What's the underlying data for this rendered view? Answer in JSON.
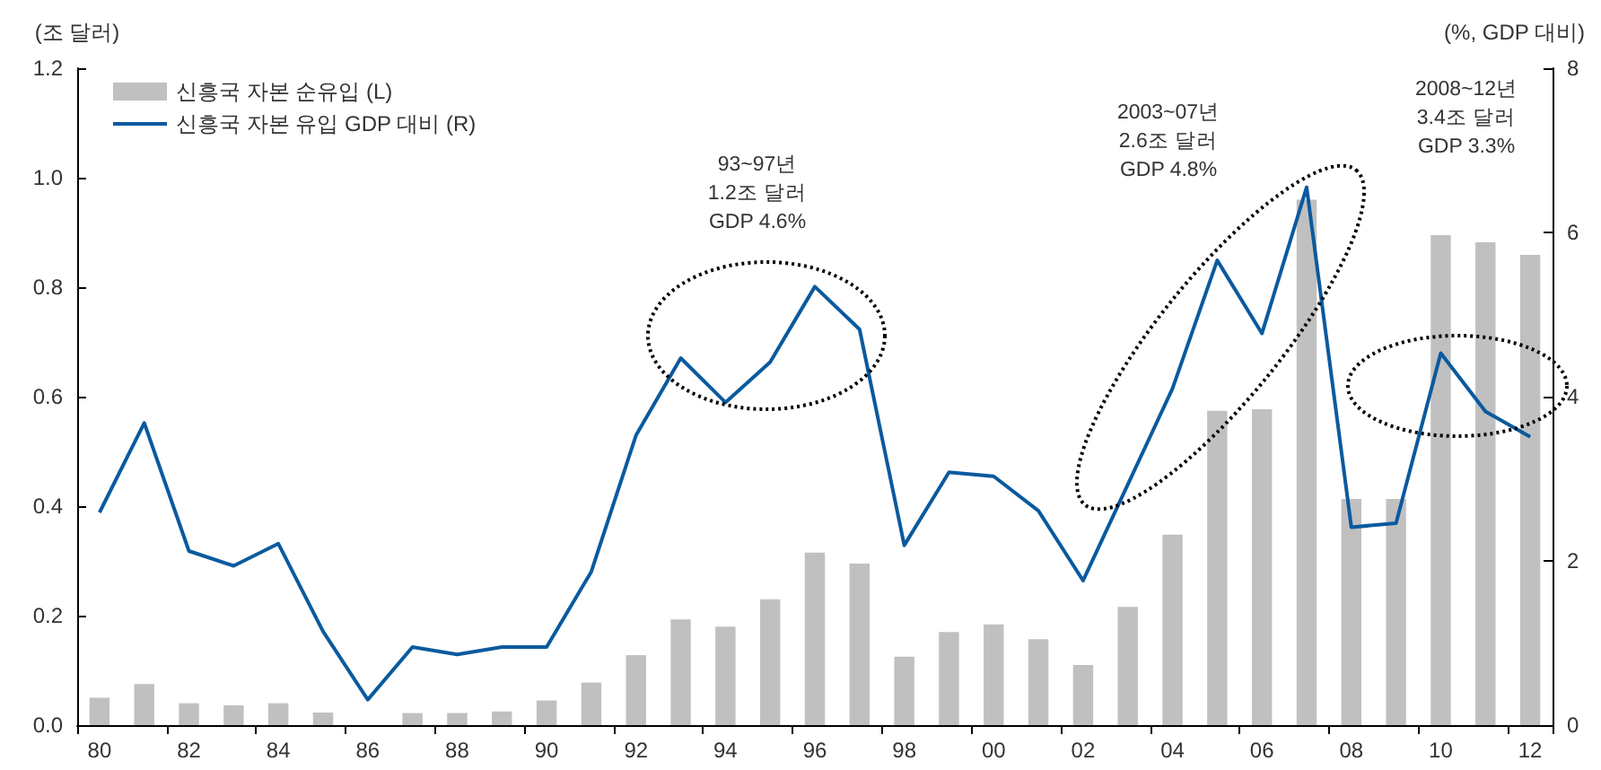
{
  "chart_data": {
    "type": "bar",
    "categories": [
      "80",
      null,
      "82",
      null,
      "84",
      null,
      "86",
      null,
      "88",
      null,
      "90",
      null,
      "92",
      null,
      "94",
      null,
      "96",
      null,
      "98",
      null,
      "00",
      null,
      "02",
      null,
      "04",
      null,
      "06",
      null,
      "08",
      null,
      "10",
      null,
      "12"
    ],
    "ylabel": "(조 달러)",
    "y2label": "(%, GDP 대비)",
    "ylim": [
      0,
      1.2
    ],
    "yticks": [
      {
        "value": 0,
        "label": "0.0"
      },
      {
        "value": 0.2,
        "label": "0.2"
      },
      {
        "value": 0.4,
        "label": "0.4"
      },
      {
        "value": 0.6,
        "label": "0.6"
      },
      {
        "value": 0.8,
        "label": "0.8"
      },
      {
        "value": 1,
        "label": "1.0"
      },
      {
        "value": 1.2,
        "label": "1.2"
      }
    ],
    "y2lim": [
      0,
      8
    ],
    "y2ticks": [
      0,
      2,
      4,
      6,
      8
    ],
    "legend": "top left",
    "marker": "none",
    "series": [
      {
        "name": "신흥국 자본 순유입 (L)",
        "color": "#c0c0c0",
        "values": [
          0.05,
          0.075,
          0.04,
          0.036,
          0.04,
          0.023,
          null,
          0.022,
          0.022,
          0.025,
          0.045,
          0.078,
          0.128,
          0.193,
          0.18,
          0.23,
          0.315,
          0.295,
          0.125,
          0.17,
          0.184,
          0.157,
          0.11,
          0.216,
          0.348,
          0.574,
          0.577,
          0.96,
          0.413,
          0.413,
          0.895,
          0.882,
          0.859
        ]
      },
      {
        "name": "신흥국 자본 유입 GDP 대비 (R)",
        "type": "line",
        "axis": "y2",
        "color": "#0a5a9e",
        "values": [
          2.59,
          3.68,
          2.12,
          1.94,
          2.21,
          1.14,
          0.31,
          0.95,
          0.86,
          0.95,
          0.95,
          1.87,
          3.53,
          4.47,
          3.93,
          4.42,
          5.34,
          4.82,
          2.19,
          3.08,
          3.03,
          2.61,
          1.76,
          2.93,
          4.1,
          5.66,
          4.77,
          6.55,
          2.41,
          2.46,
          4.53,
          3.82,
          3.51
        ]
      }
    ],
    "annotations": [
      "93~97년\n1.2조 달러\nGDP 4.6%",
      "2003~07년\n2.6조 달러\nGDP 4.8%",
      "2008~12년\n3.4조 달러\nGDP 3.3%"
    ]
  }
}
